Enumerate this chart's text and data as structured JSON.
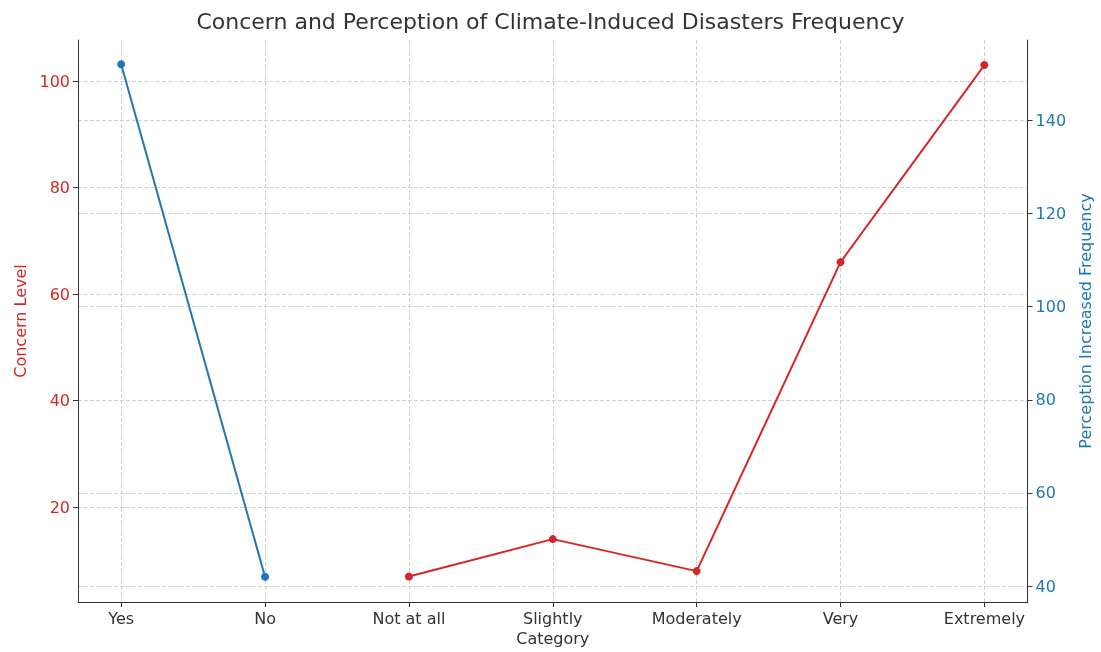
{
  "chart_data": {
    "type": "line",
    "title": "Concern and Perception of Climate-Induced Disasters Frequency",
    "xlabel": "Category",
    "ylabel": "Concern Level",
    "y2label": "Perception Increased Frequency",
    "categories": [
      "Yes",
      "No",
      "Not at all",
      "Slightly",
      "Moderately",
      "Very",
      "Extremely"
    ],
    "series": [
      {
        "color": "#d62728",
        "values": [
          null,
          null,
          7,
          14,
          8,
          66,
          103
        ]
      },
      {
        "color": "#1f77b4",
        "axis": "y2",
        "values": [
          152,
          42,
          null,
          null,
          null,
          null,
          null
        ]
      }
    ],
    "ylim": [
      2.2,
      107.7
    ],
    "yticks": [
      20,
      40,
      60,
      80,
      100
    ],
    "y2lim": [
      36.6,
      157.2
    ],
    "y2ticks": [
      40,
      60,
      80,
      100,
      120,
      140
    ],
    "grid": true,
    "marker": "circle",
    "line_style": "solid"
  }
}
